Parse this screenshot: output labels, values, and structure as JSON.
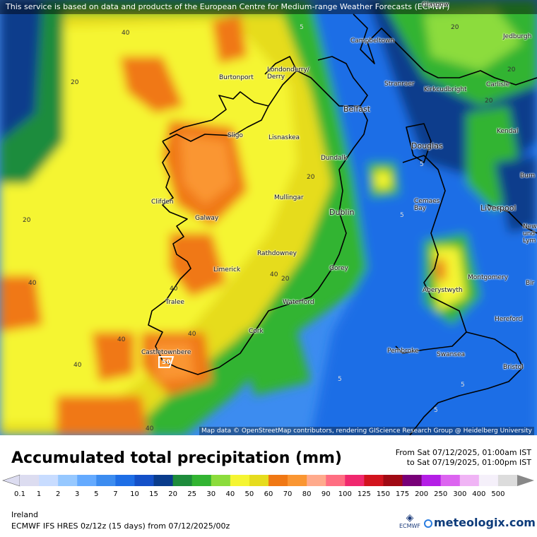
{
  "map": {
    "banner": "This service is based on data and products of the European Centre for Medium-range Weather Forecasts (ECMWF)",
    "attribution": "Map data © OpenStreetMap contributors, rendering GIScience Research Group @ Heidelberg University",
    "cities": [
      {
        "name": "Glasgow"
      },
      {
        "name": "Jedburgh"
      },
      {
        "name": "Campbeltown"
      },
      {
        "name": "Londonderry/\nDerry"
      },
      {
        "name": "Burtonport"
      },
      {
        "name": "Stranraer"
      },
      {
        "name": "Kirkcudbright"
      },
      {
        "name": "Carlisle"
      },
      {
        "name": "Belfast"
      },
      {
        "name": "Sligo"
      },
      {
        "name": "Lisnaskea"
      },
      {
        "name": "Kendal"
      },
      {
        "name": "Douglas"
      },
      {
        "name": "Dundalk"
      },
      {
        "name": "Burn"
      },
      {
        "name": "Clifden"
      },
      {
        "name": "Mullingar"
      },
      {
        "name": "Cemaes\nBay"
      },
      {
        "name": "Liverpool"
      },
      {
        "name": "Dublin"
      },
      {
        "name": "Galway"
      },
      {
        "name": "Newca\nund\nLym"
      },
      {
        "name": "Rathdowney"
      },
      {
        "name": "Limerick"
      },
      {
        "name": "Gorey"
      },
      {
        "name": "Montgomery"
      },
      {
        "name": "Bir"
      },
      {
        "name": "Aberystwyth"
      },
      {
        "name": "Tralee"
      },
      {
        "name": "Waterford"
      },
      {
        "name": "Hereford"
      },
      {
        "name": "Cork"
      },
      {
        "name": "Castletownbere"
      },
      {
        "name": "Pembroke"
      },
      {
        "name": "Swansea"
      },
      {
        "name": "Bristol"
      }
    ],
    "contour_labels": [
      "40",
      "5",
      "20",
      "20",
      "20",
      "20",
      "5",
      "20",
      "5",
      "20",
      "40",
      "20",
      "40",
      "40",
      "40",
      "40",
      "40",
      "5",
      "5",
      "5",
      "40",
      "50"
    ]
  },
  "legend": {
    "title": "Accumulated total precipitation (mm)",
    "period_from": "From Sat 07/12/2025, 01:00am IST",
    "period_to": "to Sat 07/19/2025, 01:00pm IST",
    "scale": [
      {
        "label": "0.1",
        "color": "#dcdcf0"
      },
      {
        "label": "1",
        "color": "#c8dcff"
      },
      {
        "label": "2",
        "color": "#96c8ff"
      },
      {
        "label": "3",
        "color": "#64aaff"
      },
      {
        "label": "5",
        "color": "#3c8cf0"
      },
      {
        "label": "7",
        "color": "#1e6ee6"
      },
      {
        "label": "10",
        "color": "#1450c8"
      },
      {
        "label": "15",
        "color": "#0a3c8c"
      },
      {
        "label": "20",
        "color": "#1e8c3c"
      },
      {
        "label": "25",
        "color": "#32b432"
      },
      {
        "label": "30",
        "color": "#8cdc3c"
      },
      {
        "label": "40",
        "color": "#f5f532"
      },
      {
        "label": "50",
        "color": "#e6dc1e"
      },
      {
        "label": "60",
        "color": "#f07814"
      },
      {
        "label": "70",
        "color": "#fa9632"
      },
      {
        "label": "80",
        "color": "#ffaa8c"
      },
      {
        "label": "90",
        "color": "#ff6e82"
      },
      {
        "label": "100",
        "color": "#f0286e"
      },
      {
        "label": "125",
        "color": "#d2141e"
      },
      {
        "label": "150",
        "color": "#a00a14"
      },
      {
        "label": "175",
        "color": "#780078"
      },
      {
        "label": "200",
        "color": "#b41ee6"
      },
      {
        "label": "250",
        "color": "#dc64f0"
      },
      {
        "label": "300",
        "color": "#f0b4f5"
      },
      {
        "label": "400",
        "color": "#f5f0fa"
      },
      {
        "label": "500",
        "color": "#dcdcdc"
      }
    ],
    "region": "Ireland",
    "model": "ECMWF IFS HRES 0z/12z (15 days) from 07/12/2025/00z",
    "ecmwf_logo": "ECMWF",
    "brand": "meteologix.com"
  }
}
